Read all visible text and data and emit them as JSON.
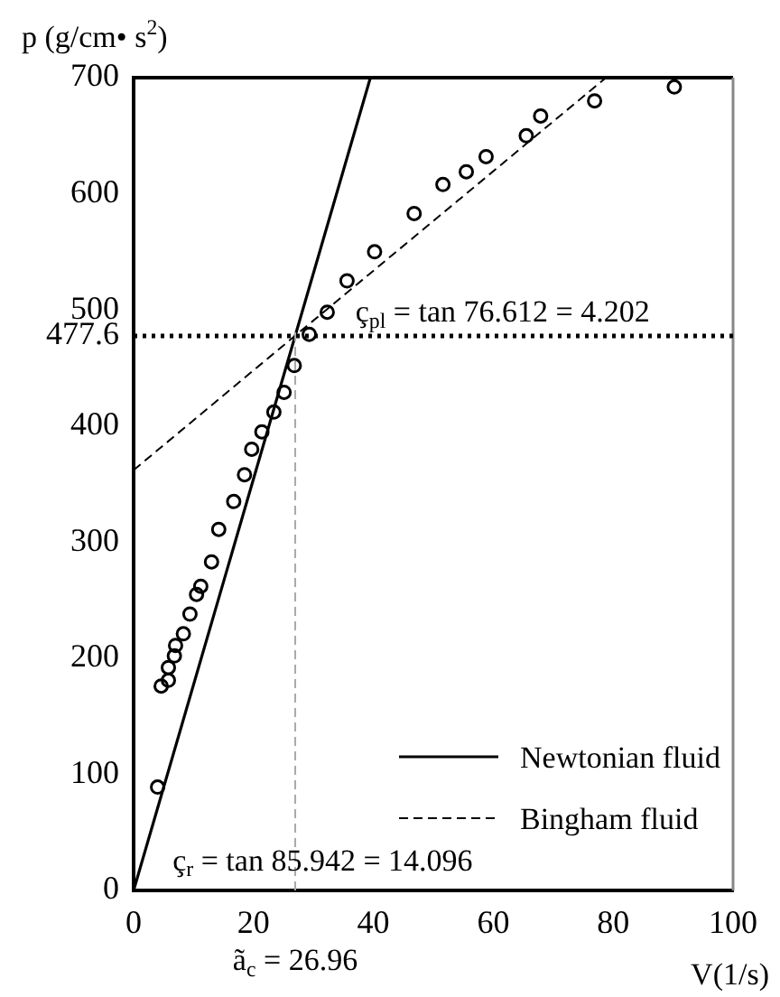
{
  "chart_data": {
    "type": "scatter",
    "ylabel": "p (g/cm• s$^{2}$)",
    "xlabel": "V(1/s)",
    "xlim": [
      0,
      100
    ],
    "xticks": [
      0,
      20,
      40,
      60,
      80,
      100
    ],
    "ylim": [
      0,
      700
    ],
    "yticks": [
      0,
      100,
      200,
      300,
      400,
      477.6,
      500,
      600,
      700
    ],
    "grid": false,
    "legend": "bottom right",
    "series": [
      {
        "marker": "circle",
        "color": "#000000",
        "x": [
          4,
          4.6,
          5.8,
          5.8,
          6.8,
          7,
          8.3,
          9.4,
          10.5,
          11.2,
          13,
          14.2,
          16.7,
          18.5,
          19.7,
          21.4,
          23.4,
          25.1,
          26.8,
          29.3,
          32.3,
          35.6,
          40.2,
          46.8,
          51.6,
          55.5,
          58.8,
          65.5,
          67.9,
          76.9,
          90.2
        ],
        "values": [
          89,
          176,
          181,
          192,
          202,
          211,
          221,
          238,
          255,
          262,
          283,
          311,
          335,
          358,
          380,
          395,
          412,
          429,
          452,
          479,
          498,
          525,
          550,
          583,
          608,
          619,
          632,
          650,
          667,
          680,
          692
        ]
      },
      {
        "type": "line",
        "name": "Newtonian fluid",
        "marker": "none",
        "line_style": "solid",
        "color": "#000000",
        "x": [
          0,
          39.5
        ],
        "values": [
          0,
          700
        ]
      },
      {
        "type": "line",
        "name": "Bingham fluid",
        "marker": "none",
        "line_style": "dashed",
        "color": "#000000",
        "x": [
          0,
          27,
          78.8
        ],
        "values": [
          362,
          478,
          700
        ]
      }
    ],
    "ref_lines": [
      {
        "axis": "y",
        "value": 477.6,
        "line_style": "dotted",
        "color": "#000000"
      },
      {
        "axis": "x",
        "value": 26.96,
        "label": "ã$_{c}$ = 26.96",
        "line_style": "dashed",
        "color": "#aaaaaa"
      }
    ],
    "annotations": [
      "ç$_{pl}$ = tan 76.612 = 4.202",
      "ç$_{r}$ = tan 85.942 = 14.096"
    ]
  }
}
